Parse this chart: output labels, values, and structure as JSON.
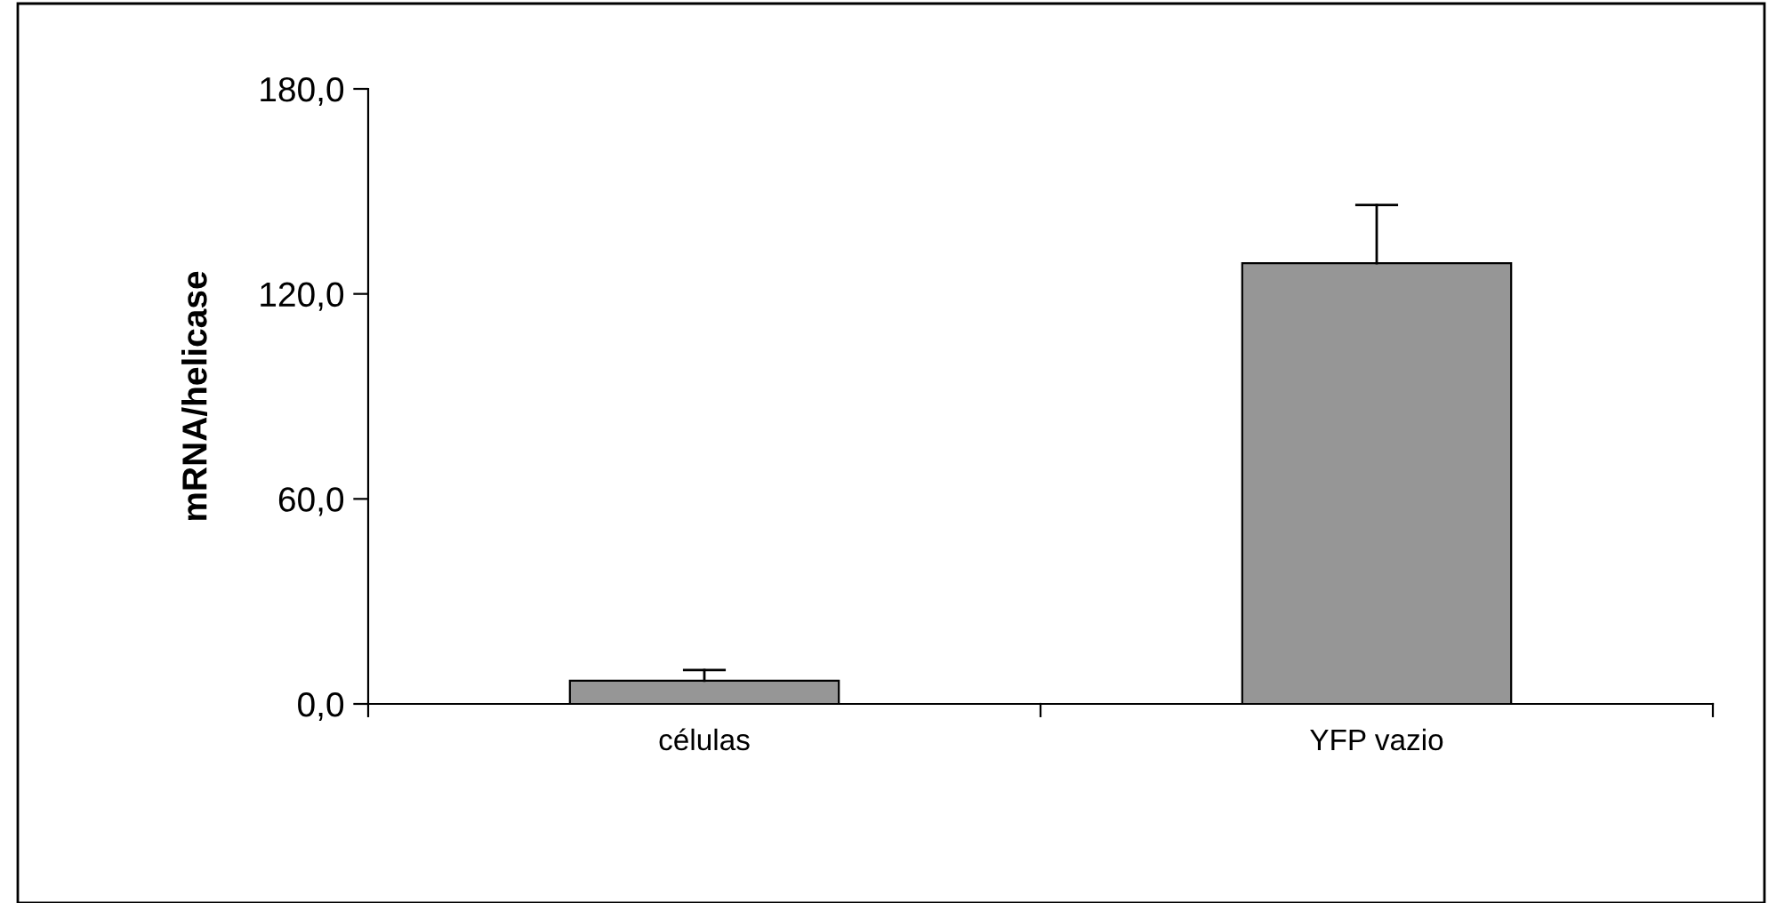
{
  "chart_data": {
    "type": "bar",
    "ylabel": "mRNA/helicase",
    "categories": [
      "células",
      "YFP vazio"
    ],
    "values": [
      6.8,
      129
    ],
    "errors": [
      [
        6.8,
        9.9
      ],
      [
        129,
        146
      ]
    ],
    "color": "#969696",
    "ylim": [
      0,
      180
    ],
    "yticks": [
      {
        "value": 0,
        "label": "0,0"
      },
      {
        "value": 60,
        "label": "60,0"
      },
      {
        "value": 120,
        "label": "120,0"
      },
      {
        "value": 180,
        "label": "180,0"
      }
    ],
    "grid": false,
    "legend": false
  }
}
